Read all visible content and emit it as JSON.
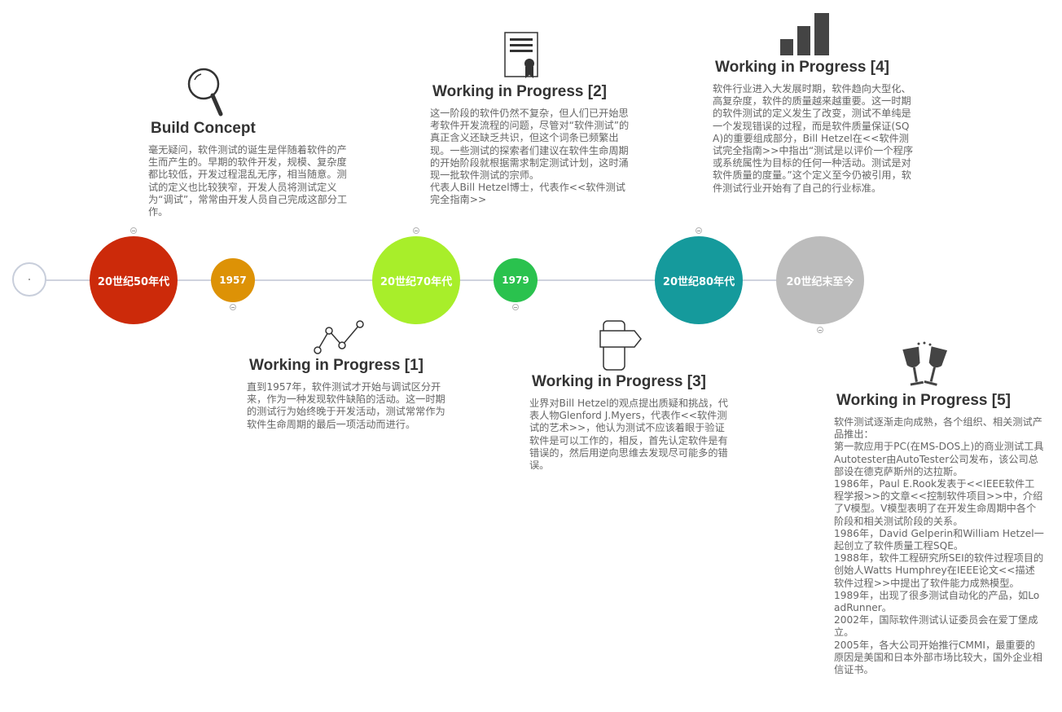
{
  "timeline": {
    "nodes": [
      {
        "label": "",
        "color": "#ffffff"
      },
      {
        "label": "20世纪50年代",
        "color": "#cc2a0a"
      },
      {
        "label": "1957",
        "color": "#dd9206"
      },
      {
        "label": "20世纪70年代",
        "color": "#a8ee2a"
      },
      {
        "label": "1979",
        "color": "#2ac24e"
      },
      {
        "label": "20世纪80年代",
        "color": "#159a9c"
      },
      {
        "label": "20世纪末至今",
        "color": "#bcbcbc"
      }
    ]
  },
  "cards": {
    "build_concept": {
      "title": "Build Concept",
      "icon": "magnifier-icon",
      "text": "毫无疑问，软件测试的诞生是伴随着软件的产生而产生的。早期的软件开发，规模、复杂度都比较低，开发过程混乱无序，相当随意。测试的定义也比较狭窄，开发人员将测试定义为“调试”，常常由开发人员自己完成这部分工作。"
    },
    "wip1": {
      "title": "Working in Progress [1]",
      "icon": "line-chart-icon",
      "text": "直到1957年，软件测试才开始与调试区分开来，作为一种发现软件缺陷的活动。这一时期的测试行为始终晚于开发活动，测试常常作为软件生命周期的最后一项活动而进行。"
    },
    "wip2": {
      "title": "Working in Progress [2]",
      "icon": "certificate-icon",
      "text": "这一阶段的软件仍然不复杂，但人们已开始思考软件开发流程的问题，尽管对“软件测试”的真正含义还缺乏共识，但这个词条已频繁出现。一些测试的探索者们建议在软件生命周期的开始阶段就根据需求制定测试计划，这时涌现一批软件测试的宗师。",
      "text2": "代表人Bill Hetzel博士，代表作<<软件测试完全指南>>"
    },
    "wip3": {
      "title": "Working in Progress [3]",
      "icon": "signpost-icon",
      "text": "业界对Bill Hetzel的观点提出质疑和挑战，代表人物Glenford J.Myers，代表作<<软件测试的艺术>>，他认为测试不应该着眼于验证软件是可以工作的，相反，首先认定软件是有错误的，然后用逆向思维去发现尽可能多的错误。"
    },
    "wip4": {
      "title": "Working in Progress [4]",
      "icon": "bar-chart-icon",
      "text": "软件行业进入大发展时期，软件趋向大型化、高复杂度，软件的质量越来越重要。这一时期的软件测试的定义发生了改变，测试不单纯是一个发现错误的过程，而是软件质量保证(SQA)的重要组成部分，Bill Hetzel在<<软件测试完全指南>>中指出“测试是以评价一个程序或系统属性为目标的任何一种活动。测试是对软件质量的度量。”这个定义至今仍被引用，软件测试行业开始有了自己的行业标准。"
    },
    "wip5": {
      "title": "Working in Progress [5]",
      "icon": "champagne-icon",
      "lines": [
        "软件测试逐渐走向成熟，各个组织、相关测试产品推出：",
        "第一款应用于PC(在MS-DOS上)的商业测试工具Autotester由AutoTester公司发布，该公司总部设在德克萨斯州的达拉斯。",
        "1986年，Paul E.Rook发表于<<IEEE软件工程学报>>的文章<<控制软件项目>>中，介绍了V模型。V模型表明了在开发生命周期中各个阶段和相关测试阶段的关系。",
        "1986年，David Gelperin和William Hetzel一起创立了软件质量工程SQE。",
        "1988年，软件工程研究所SEI的软件过程项目的创始人Watts Humphrey在IEEE论文<<描述软件过程>>中提出了软件能力成熟模型。",
        "1989年，出现了很多测试自动化的产品，如LoadRunner。",
        "2002年，国际软件测试认证委员会在爱丁堡成立。",
        "2005年，各大公司开始推行CMMI，最重要的原因是美国和日本外部市场比较大，国外企业相信证书。"
      ]
    }
  }
}
